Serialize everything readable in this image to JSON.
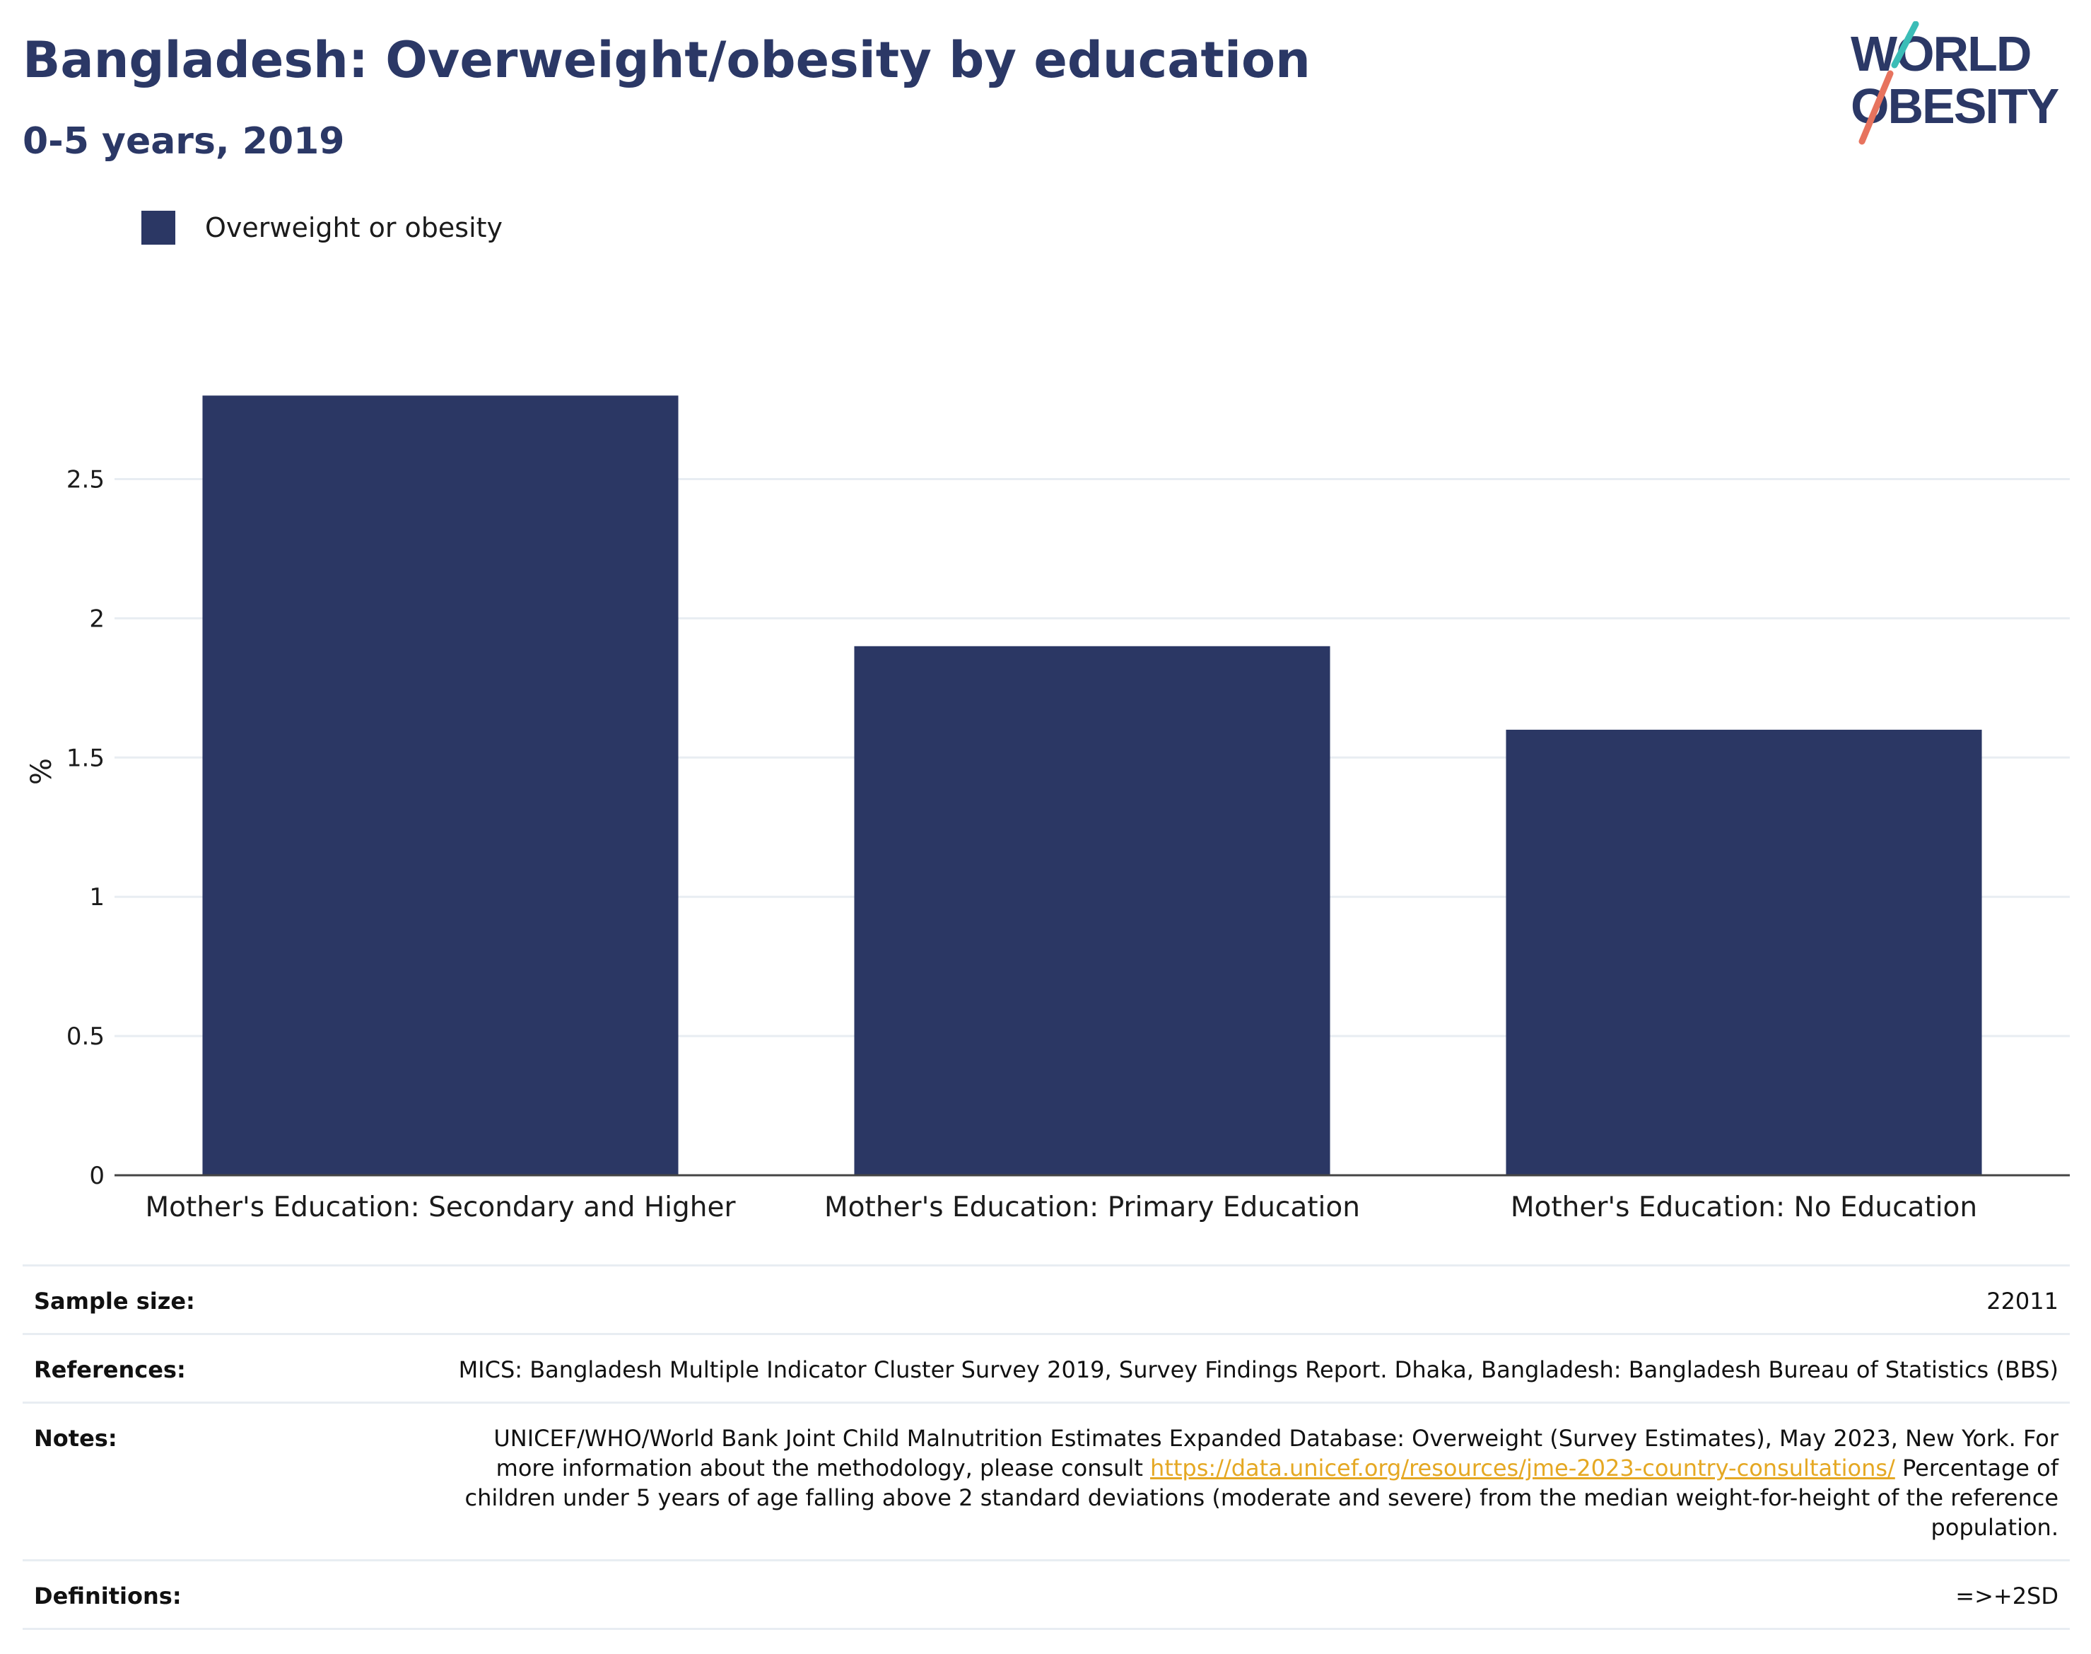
{
  "header": {
    "title": "Bangladesh: Overweight/obesity by education",
    "subtitle": "0-5 years, 2019"
  },
  "logo": {
    "line1": "WORLD",
    "line2": "OBESITY"
  },
  "colors": {
    "bar": "#2b3764",
    "title": "#2b3866",
    "link": "#e5a823",
    "grid": "#e8edf2",
    "logo_teal": "#3bbdb7",
    "logo_coral": "#e7735e"
  },
  "chart_data": {
    "type": "bar",
    "categories": [
      "Mother's Education: Secondary and Higher",
      "Mother's Education: Primary Education",
      "Mother's Education: No Education"
    ],
    "series": [
      {
        "name": "Overweight or obesity",
        "values": [
          2.8,
          1.9,
          1.6
        ]
      }
    ],
    "ylabel": "%",
    "ylim": [
      0,
      2.9
    ],
    "yticks": [
      0,
      0.5,
      1,
      1.5,
      2,
      2.5
    ],
    "ytick_labels": [
      "0",
      "0.5",
      "1",
      "1.5",
      "2",
      "2.5"
    ],
    "grid": true,
    "legend_position": "top-left"
  },
  "info": {
    "rows": [
      {
        "label": "Sample size:",
        "value": "22011"
      },
      {
        "label": "References:",
        "value": "MICS: Bangladesh Multiple Indicator Cluster Survey 2019, Survey Findings Report. Dhaka, Bangladesh: Bangladesh Bureau of Statistics (BBS)"
      },
      {
        "label": "Notes:",
        "value_before": "UNICEF/WHO/World Bank Joint Child Malnutrition Estimates Expanded Database: Overweight (Survey Estimates), May 2023, New York. For more information about the methodology, please consult ",
        "link": "https://data.unicef.org/resources/jme-2023-country-consultations/",
        "value_after": " Percentage of children under 5 years of age falling above 2 standard deviations (moderate and severe) from the median weight-for-height of the reference population."
      },
      {
        "label": "Definitions:",
        "value": "=>+2SD"
      }
    ]
  }
}
